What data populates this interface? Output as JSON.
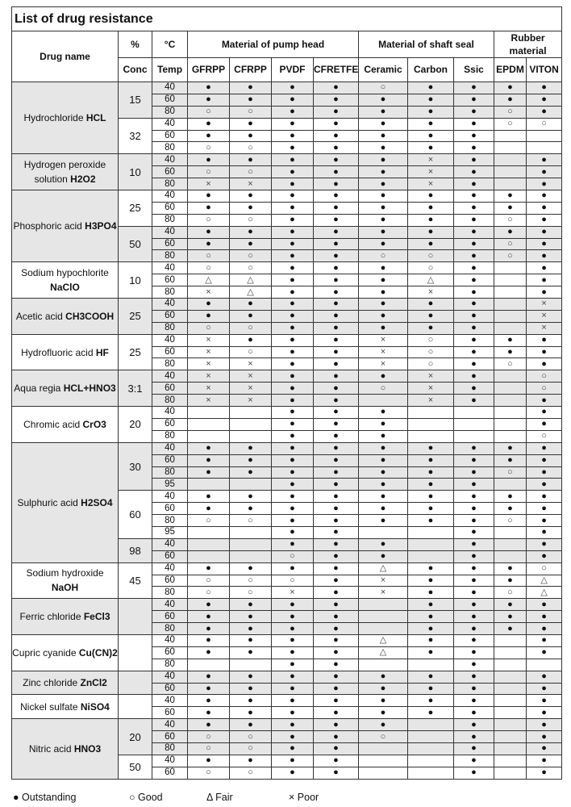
{
  "title": "List of drug resistance",
  "header": {
    "drug_name": "Drug name",
    "pct": "%",
    "conc": "Conc",
    "deg": "°C",
    "temp": "Temp",
    "pump_head": "Material of pump head",
    "shaft_seal": "Material of shaft seal",
    "rubber": "Rubber material",
    "columns": [
      "GFRPP",
      "CFRPP",
      "PVDF",
      "CFRETFE",
      "Ceramic",
      "Carbon",
      "Ssic",
      "EPDM",
      "VITON"
    ]
  },
  "symbols": {
    "O": "●",
    "G": "○",
    "F": "△",
    "P": "×",
    "_": ""
  },
  "legend": [
    {
      "sym": "●",
      "label": "Outstanding"
    },
    {
      "sym": "○",
      "label": "Good"
    },
    {
      "sym": "Δ",
      "label": "Fair"
    },
    {
      "sym": "×",
      "label": "Poor"
    }
  ],
  "drugs": [
    {
      "name": "Hydrochloride ",
      "formula": "HCL",
      "shade": true,
      "groups": [
        {
          "conc": "15",
          "shade": true,
          "rows": [
            {
              "t": "40",
              "v": "OOOOGOOOO"
            },
            {
              "t": "60",
              "v": "OOOOOOOOO"
            },
            {
              "t": "80",
              "v": "GGOOOOOGO"
            }
          ]
        },
        {
          "conc": "32",
          "shade": false,
          "rows": [
            {
              "t": "40",
              "v": "OOOOOOOGG"
            },
            {
              "t": "60",
              "v": "OOOOOOO__"
            },
            {
              "t": "80",
              "v": "GGOOOOO__"
            }
          ]
        }
      ]
    },
    {
      "name": "Hydrogen peroxide solution ",
      "formula": "H2O2",
      "shade": true,
      "groups": [
        {
          "conc": "10",
          "shade": true,
          "rows": [
            {
              "t": "40",
              "v": "OOOOOPO_O"
            },
            {
              "t": "60",
              "v": "GGOOOPO_O"
            },
            {
              "t": "80",
              "v": "PPOOOPO_O"
            }
          ]
        }
      ]
    },
    {
      "name": "Phosphoric acid ",
      "formula": "H3PO4",
      "shade": true,
      "groups": [
        {
          "conc": "25",
          "shade": false,
          "rows": [
            {
              "t": "40",
              "v": "OOOOOOOOO"
            },
            {
              "t": "60",
              "v": "OOOOOOOOO"
            },
            {
              "t": "80",
              "v": "GGOOOOOGO"
            }
          ]
        },
        {
          "conc": "50",
          "shade": true,
          "rows": [
            {
              "t": "40",
              "v": "OOOOOOOOO"
            },
            {
              "t": "60",
              "v": "OOOOOOOGO"
            },
            {
              "t": "80",
              "v": "GGOOGGOGO"
            }
          ]
        }
      ]
    },
    {
      "name": "Sodium hypochlorite ",
      "formula": "NaClO",
      "shade": false,
      "groups": [
        {
          "conc": "10",
          "shade": false,
          "rows": [
            {
              "t": "40",
              "v": "GGOOOGO_O"
            },
            {
              "t": "60",
              "v": "FFOOOFO_O"
            },
            {
              "t": "80",
              "v": "PFOOOPO_O"
            }
          ]
        }
      ]
    },
    {
      "name": "Acetic acid ",
      "formula": "CH3COOH",
      "shade": true,
      "groups": [
        {
          "conc": "25",
          "shade": true,
          "rows": [
            {
              "t": "40",
              "v": "OOOOOOO_P"
            },
            {
              "t": "60",
              "v": "OOOOOOO_P"
            },
            {
              "t": "80",
              "v": "GGOOOOO_P"
            }
          ]
        }
      ]
    },
    {
      "name": "Hydrofluoric acid ",
      "formula": "HF",
      "shade": false,
      "groups": [
        {
          "conc": "25",
          "shade": false,
          "rows": [
            {
              "t": "40",
              "v": "POOOPGOOO"
            },
            {
              "t": "60",
              "v": "PGOOPGOOO"
            },
            {
              "t": "80",
              "v": "PPOOPGOGO"
            }
          ]
        }
      ]
    },
    {
      "name": "Aqua regia ",
      "formula": "HCL+HNO3",
      "shade": true,
      "groups": [
        {
          "conc": "3:1",
          "shade": true,
          "rows": [
            {
              "t": "40",
              "v": "PPOOOPO_G"
            },
            {
              "t": "60",
              "v": "PPOOGPO_G"
            },
            {
              "t": "80",
              "v": "PPOO_PO_O"
            }
          ]
        }
      ]
    },
    {
      "name": "Chromic acid ",
      "formula": "CrO3",
      "shade": false,
      "groups": [
        {
          "conc": "20",
          "shade": false,
          "rows": [
            {
              "t": "40",
              "v": "__OOO___O"
            },
            {
              "t": "60",
              "v": "__OOO___O"
            },
            {
              "t": "80",
              "v": "__OOO___G"
            }
          ]
        }
      ]
    },
    {
      "name": "Sulphuric acid ",
      "formula": "H2SO4",
      "shade": true,
      "groups": [
        {
          "conc": "30",
          "shade": true,
          "rows": [
            {
              "t": "40",
              "v": "OOOOOOOOO"
            },
            {
              "t": "60",
              "v": "OOOOOOOOO"
            },
            {
              "t": "80",
              "v": "OOOOOOOGO"
            },
            {
              "t": "95",
              "v": "__OOOOO_O"
            }
          ]
        },
        {
          "conc": "60",
          "shade": false,
          "rows": [
            {
              "t": "40",
              "v": "OOOOOOOOO"
            },
            {
              "t": "60",
              "v": "OOOOOOOOO"
            },
            {
              "t": "80",
              "v": "GGOOOOOGO"
            },
            {
              "t": "95",
              "v": "__OO__O_O"
            }
          ]
        },
        {
          "conc": "98",
          "shade": true,
          "rows": [
            {
              "t": "40",
              "v": "__OOO_O_O"
            },
            {
              "t": "60",
              "v": "__GOO_O_O"
            }
          ]
        }
      ]
    },
    {
      "name": "Sodium hydroxide ",
      "formula": "NaOH",
      "shade": false,
      "groups": [
        {
          "conc": "45",
          "shade": false,
          "rows": [
            {
              "t": "40",
              "v": "OOOOFOOOG"
            },
            {
              "t": "60",
              "v": "GGGOPOOOF"
            },
            {
              "t": "80",
              "v": "GGPOPOOGF"
            }
          ]
        }
      ]
    },
    {
      "name": "Ferric chloride ",
      "formula": "FeCl3",
      "shade": true,
      "groups": [
        {
          "conc": "",
          "shade": true,
          "rows": [
            {
              "t": "40",
              "v": "OOOO_OOOO"
            },
            {
              "t": "60",
              "v": "OOOO_OOOO"
            },
            {
              "t": "80",
              "v": "OOOO_OOOO"
            }
          ]
        }
      ]
    },
    {
      "name": "Cupric cyanide ",
      "formula": "Cu(CN)2",
      "shade": false,
      "groups": [
        {
          "conc": "",
          "shade": false,
          "rows": [
            {
              "t": "40",
              "v": "OOOOFOO_O"
            },
            {
              "t": "60",
              "v": "OOOOFOO_O"
            },
            {
              "t": "80",
              "v": "__OO__O__"
            }
          ]
        }
      ]
    },
    {
      "name": "Zinc chloride ",
      "formula": "ZnCl2",
      "shade": true,
      "groups": [
        {
          "conc": "",
          "shade": true,
          "rows": [
            {
              "t": "40",
              "v": "OOOOOOO_O"
            },
            {
              "t": "60",
              "v": "OOOOOOO_O"
            }
          ]
        }
      ]
    },
    {
      "name": "Nickel sulfate ",
      "formula": "NiSO4",
      "shade": false,
      "groups": [
        {
          "conc": "",
          "shade": false,
          "rows": [
            {
              "t": "40",
              "v": "OOOOOOO_O"
            },
            {
              "t": "60",
              "v": "OOOOOOO_O"
            }
          ]
        }
      ]
    },
    {
      "name": "Nitric acid ",
      "formula": "HNO3",
      "shade": true,
      "groups": [
        {
          "conc": "20",
          "shade": true,
          "rows": [
            {
              "t": "40",
              "v": "OOOOO_O_O"
            },
            {
              "t": "60",
              "v": "GGOOG_O_O"
            },
            {
              "t": "80",
              "v": "GGOO__O_O"
            }
          ]
        },
        {
          "conc": "50",
          "shade": false,
          "rows": [
            {
              "t": "40",
              "v": "OOOO__O_O"
            },
            {
              "t": "60",
              "v": "GGOO__O_O"
            }
          ]
        }
      ]
    }
  ]
}
